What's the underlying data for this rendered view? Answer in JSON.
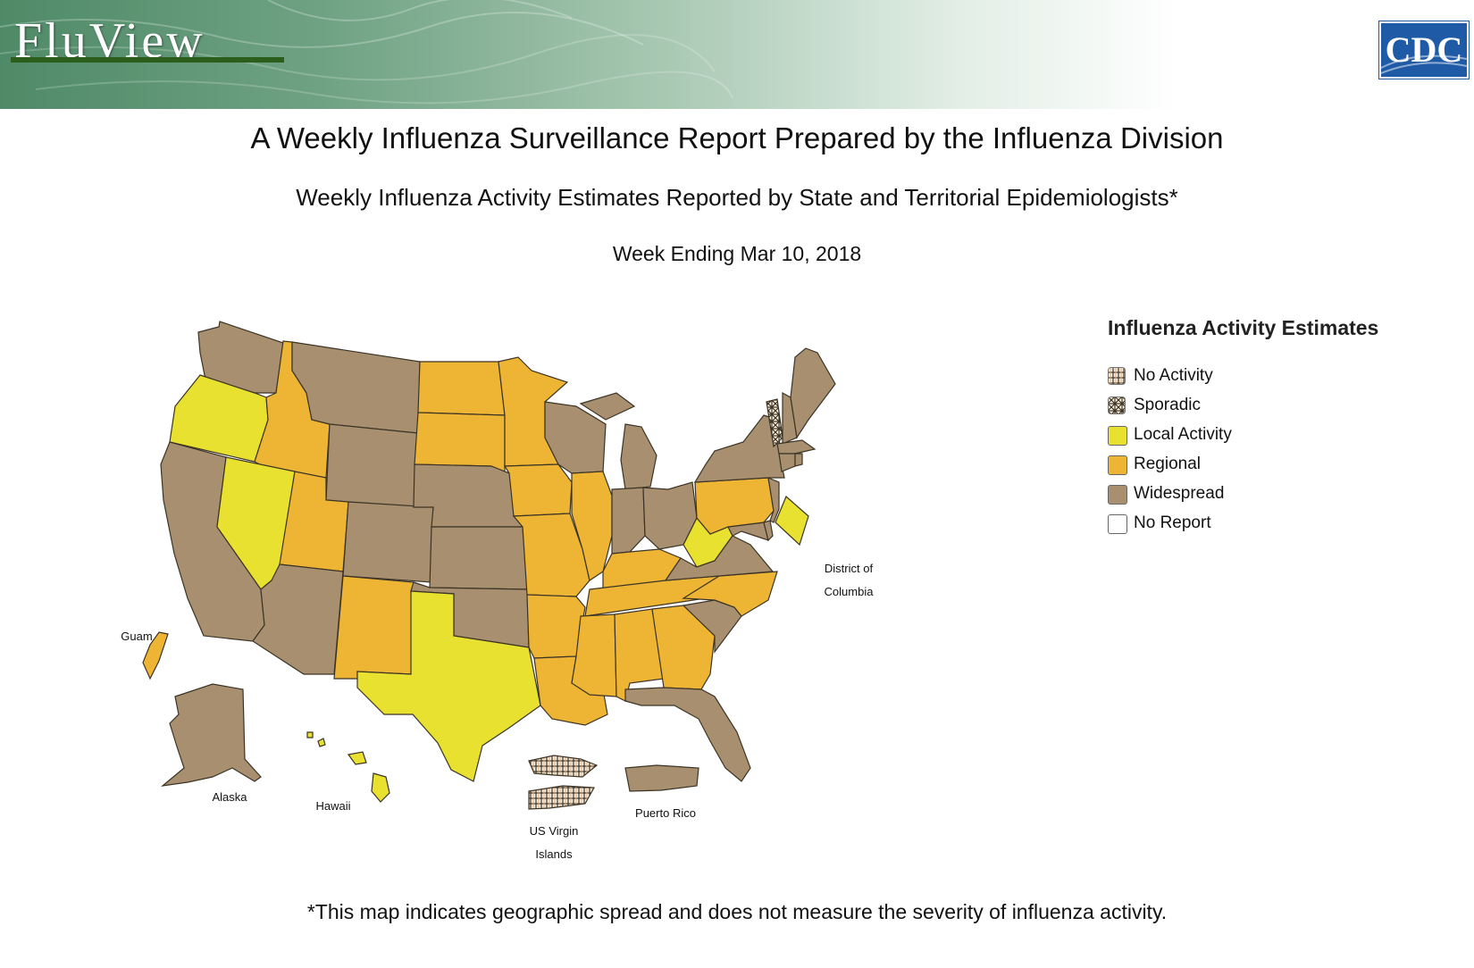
{
  "header": {
    "logo_text": "FluView",
    "agency_logo_text": "CDC"
  },
  "titles": {
    "main": "A Weekly Influenza Surveillance Report Prepared by the Influenza Division",
    "subtitle": "Weekly Influenza Activity Estimates Reported by State and Territorial Epidemiologists*",
    "week": "Week Ending Mar 10, 2018"
  },
  "legend": {
    "title": "Influenza Activity Estimates",
    "items": [
      {
        "label": "No Activity",
        "color": "#fbeee0",
        "pattern": "vertical-lines"
      },
      {
        "label": "Sporadic",
        "color": "#f7e3b0",
        "pattern": "crosshatch"
      },
      {
        "label": "Local Activity",
        "color": "#e8e12f",
        "pattern": "solid"
      },
      {
        "label": "Regional",
        "color": "#eeb535",
        "pattern": "solid"
      },
      {
        "label": "Widespread",
        "color": "#a88f6f",
        "pattern": "solid"
      },
      {
        "label": "No Report",
        "color": "#ffffff",
        "pattern": "solid"
      }
    ]
  },
  "map_labels": {
    "dc_line1": "District of",
    "dc_line2": "Columbia",
    "guam": "Guam",
    "alaska": "Alaska",
    "hawaii": "Hawaii",
    "usvi_line1": "US Virgin",
    "usvi_line2": "Islands",
    "puerto_rico": "Puerto Rico"
  },
  "footnote": "*This map indicates geographic spread and does not measure the severity of influenza activity."
}
